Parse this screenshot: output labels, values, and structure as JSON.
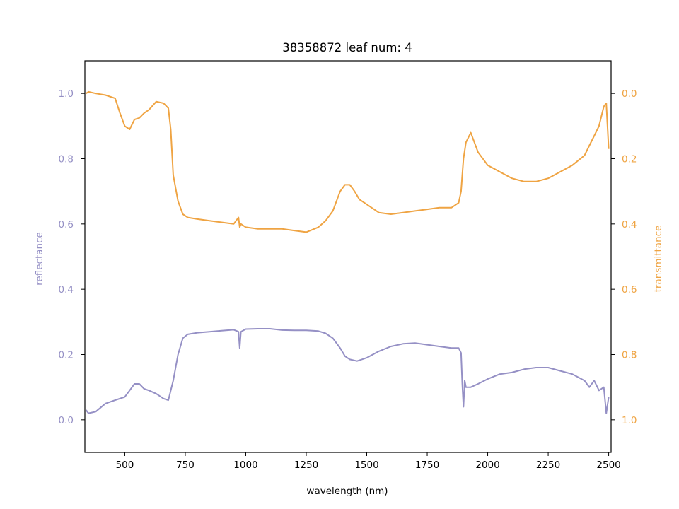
{
  "chart_data": {
    "type": "line",
    "title": "38358872 leaf num: 4",
    "xlabel": "wavelength (nm)",
    "ylabel_left": "reflectance",
    "ylabel_right": "transmittance",
    "xlim": [
      335,
      2510
    ],
    "ylim_left": [
      -0.1,
      1.1
    ],
    "ylim_right": [
      1.1,
      -0.1
    ],
    "right_axis_inverted": true,
    "grid": false,
    "x_ticks": [
      "500",
      "750",
      "1000",
      "1250",
      "1500",
      "1750",
      "2000",
      "2250",
      "2500"
    ],
    "y_ticks_left": [
      "0.0",
      "0.2",
      "0.4",
      "0.6",
      "0.8",
      "1.0"
    ],
    "y_ticks_right": [
      "0.0",
      "0.2",
      "0.4",
      "0.6",
      "0.8",
      "1.0"
    ],
    "colors": {
      "reflectance": "#9590c5",
      "transmittance": "#efa443"
    },
    "series": [
      {
        "name": "reflectance",
        "axis": "left",
        "x": [
          340,
          350,
          380,
          420,
          460,
          500,
          520,
          540,
          560,
          580,
          600,
          630,
          660,
          680,
          700,
          720,
          740,
          760,
          800,
          850,
          900,
          950,
          970,
          975,
          980,
          1000,
          1050,
          1100,
          1150,
          1200,
          1250,
          1300,
          1330,
          1360,
          1390,
          1410,
          1430,
          1460,
          1500,
          1550,
          1600,
          1650,
          1700,
          1750,
          1800,
          1850,
          1880,
          1890,
          1895,
          1900,
          1905,
          1910,
          1930,
          1960,
          2000,
          2050,
          2100,
          2150,
          2200,
          2250,
          2300,
          2350,
          2400,
          2420,
          2440,
          2460,
          2480,
          2490,
          2500
        ],
        "y": [
          0.03,
          0.02,
          0.025,
          0.05,
          0.06,
          0.07,
          0.09,
          0.11,
          0.11,
          0.095,
          0.09,
          0.08,
          0.065,
          0.06,
          0.12,
          0.2,
          0.25,
          0.262,
          0.267,
          0.27,
          0.273,
          0.276,
          0.27,
          0.22,
          0.27,
          0.278,
          0.279,
          0.279,
          0.275,
          0.274,
          0.274,
          0.272,
          0.265,
          0.25,
          0.22,
          0.195,
          0.185,
          0.18,
          0.19,
          0.21,
          0.225,
          0.233,
          0.235,
          0.23,
          0.225,
          0.22,
          0.22,
          0.205,
          0.11,
          0.04,
          0.12,
          0.1,
          0.1,
          0.11,
          0.125,
          0.14,
          0.145,
          0.155,
          0.16,
          0.16,
          0.15,
          0.14,
          0.12,
          0.1,
          0.12,
          0.09,
          0.1,
          0.02,
          0.07
        ]
      },
      {
        "name": "transmittance",
        "axis": "right",
        "x": [
          340,
          350,
          380,
          420,
          460,
          480,
          500,
          520,
          540,
          560,
          580,
          600,
          630,
          660,
          680,
          690,
          700,
          720,
          740,
          760,
          800,
          850,
          900,
          950,
          970,
          975,
          980,
          1000,
          1050,
          1100,
          1150,
          1200,
          1250,
          1300,
          1330,
          1360,
          1390,
          1410,
          1430,
          1450,
          1470,
          1500,
          1550,
          1600,
          1650,
          1700,
          1750,
          1800,
          1850,
          1880,
          1890,
          1900,
          1910,
          1930,
          1960,
          2000,
          2050,
          2100,
          2150,
          2200,
          2250,
          2300,
          2350,
          2400,
          2420,
          2440,
          2460,
          2480,
          2490,
          2500
        ],
        "y": [
          0.0,
          -0.005,
          0.0,
          0.005,
          0.015,
          0.06,
          0.1,
          0.11,
          0.08,
          0.075,
          0.06,
          0.05,
          0.025,
          0.03,
          0.045,
          0.11,
          0.25,
          0.33,
          0.37,
          0.38,
          0.385,
          0.39,
          0.395,
          0.4,
          0.38,
          0.41,
          0.4,
          0.41,
          0.415,
          0.415,
          0.415,
          0.42,
          0.425,
          0.41,
          0.39,
          0.36,
          0.3,
          0.28,
          0.28,
          0.3,
          0.325,
          0.34,
          0.365,
          0.37,
          0.365,
          0.36,
          0.355,
          0.35,
          0.35,
          0.335,
          0.3,
          0.2,
          0.15,
          0.12,
          0.18,
          0.22,
          0.24,
          0.26,
          0.27,
          0.27,
          0.26,
          0.24,
          0.22,
          0.19,
          0.16,
          0.13,
          0.1,
          0.04,
          0.03,
          0.17
        ]
      }
    ]
  }
}
